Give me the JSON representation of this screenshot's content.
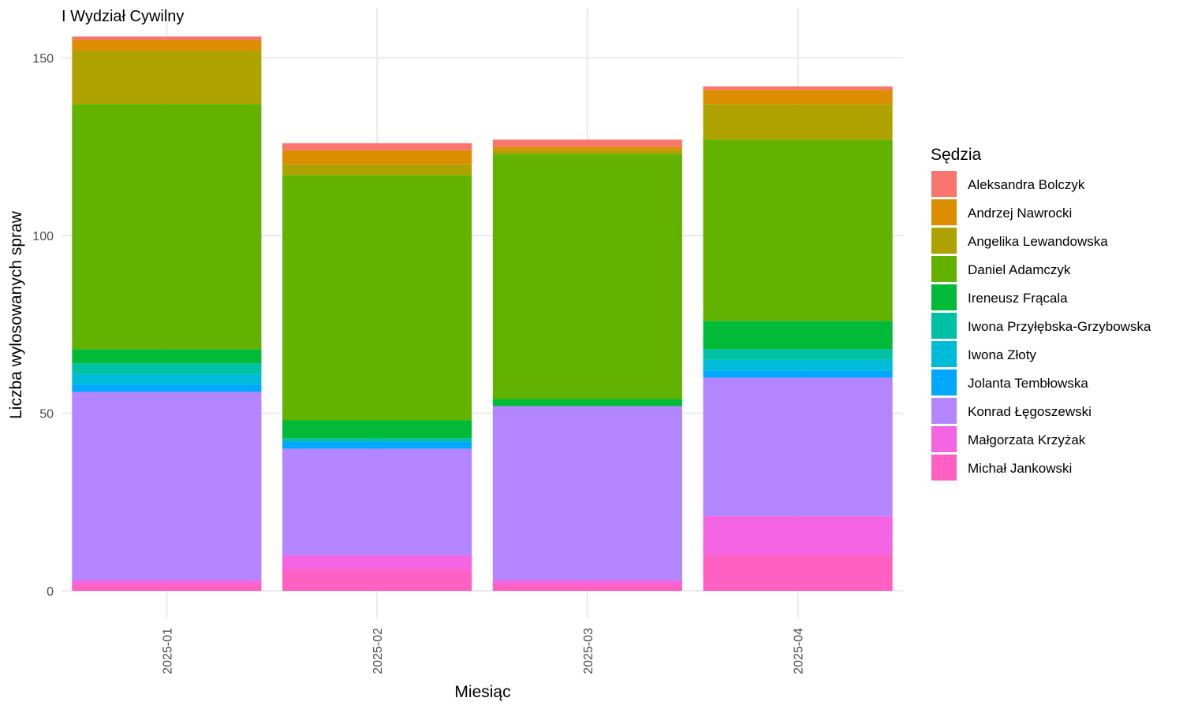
{
  "chart_data": {
    "type": "bar",
    "stacked": true,
    "title": "I Wydział Cywilny",
    "xlabel": "Miesiąc",
    "ylabel": "Liczba wylosowanych spraw",
    "legend_title": "Sędzia",
    "legend_position": "right",
    "grid": true,
    "ylim": [
      0,
      160
    ],
    "yticks": [
      0,
      50,
      100,
      150
    ],
    "categories": [
      "2025-01",
      "2025-02",
      "2025-03",
      "2025-04"
    ],
    "series": [
      {
        "name": "Michał Jankowski",
        "color": "#FF61C3",
        "values": [
          2,
          6,
          2,
          10
        ]
      },
      {
        "name": "Małgorzata Krzyżak",
        "color": "#F564E3",
        "values": [
          1,
          4,
          1,
          11
        ]
      },
      {
        "name": "Konrad Łęgoszewski",
        "color": "#B385FF",
        "values": [
          53,
          30,
          49,
          39
        ]
      },
      {
        "name": "Jolanta Tembłowska",
        "color": "#00A9FF",
        "values": [
          2,
          2,
          0,
          2
        ]
      },
      {
        "name": "Iwona Złoty",
        "color": "#00BCD8",
        "values": [
          3,
          0,
          0,
          3
        ]
      },
      {
        "name": "Iwona Przyłębska-Grzybowska",
        "color": "#00C1A3",
        "values": [
          3,
          1,
          0,
          3
        ]
      },
      {
        "name": "Ireneusz Frącala",
        "color": "#00BA38",
        "values": [
          4,
          5,
          2,
          8
        ]
      },
      {
        "name": "Daniel Adamczyk",
        "color": "#64B200",
        "values": [
          69,
          69,
          69,
          51
        ]
      },
      {
        "name": "Angelika Lewandowska",
        "color": "#AEA200",
        "values": [
          15,
          3,
          1,
          10
        ]
      },
      {
        "name": "Andrzej Nawrocki",
        "color": "#DB8E00",
        "values": [
          3,
          4,
          1,
          4
        ]
      },
      {
        "name": "Aleksandra Bolczyk",
        "color": "#F8766D",
        "values": [
          1,
          2,
          2,
          1
        ]
      }
    ],
    "legend_order": [
      "Aleksandra Bolczyk",
      "Andrzej Nawrocki",
      "Angelika Lewandowska",
      "Daniel Adamczyk",
      "Ireneusz Frącala",
      "Iwona Przyłębska-Grzybowska",
      "Iwona Złoty",
      "Jolanta Tembłowska",
      "Konrad Łęgoszewski",
      "Małgorzata Krzyżak",
      "Michał Jankowski"
    ]
  }
}
